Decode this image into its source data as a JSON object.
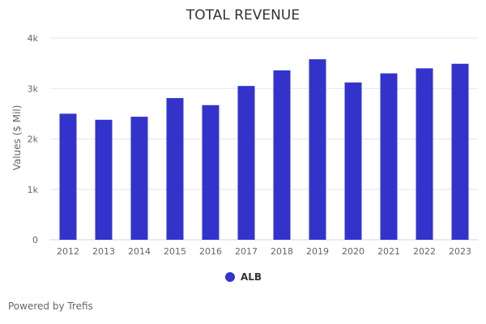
{
  "chart_data": {
    "type": "bar",
    "title": "TOTAL REVENUE",
    "categories": [
      "2012",
      "2013",
      "2014",
      "2015",
      "2016",
      "2017",
      "2018",
      "2019",
      "2020",
      "2021",
      "2022",
      "2023"
    ],
    "series": [
      {
        "name": "ALB",
        "color": "#3333cc",
        "values": [
          2500,
          2380,
          2440,
          2810,
          2670,
          3050,
          3360,
          3580,
          3120,
          3300,
          3400,
          3490
        ]
      }
    ],
    "xlabel": "",
    "ylabel": "Values ($ Mil)",
    "ylim": [
      0,
      4000
    ],
    "yticks": [
      0,
      1000,
      2000,
      3000,
      4000
    ],
    "ytick_labels": [
      "0",
      "1k",
      "2k",
      "3k",
      "4k"
    ],
    "grid": true,
    "legend_position": "bottom-center"
  },
  "footer": {
    "credit": "Powered by Trefis"
  }
}
